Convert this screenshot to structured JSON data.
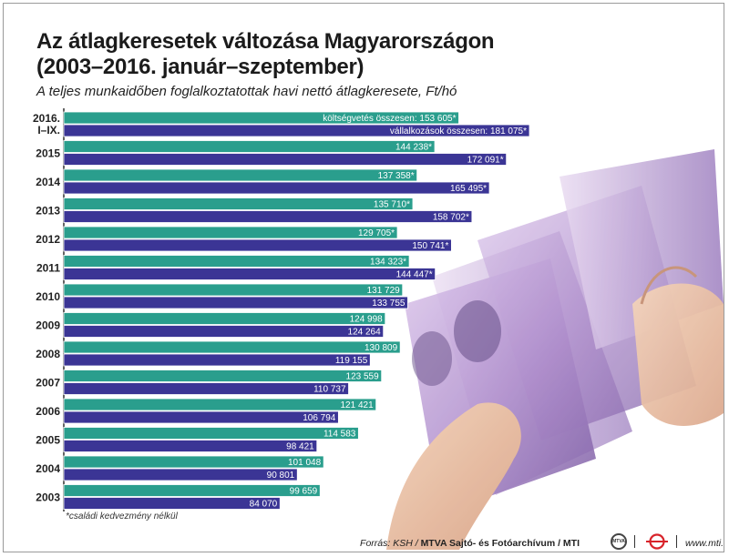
{
  "title_line1": "Az átlagkeresetek változása Magyarországon",
  "title_line2": "(2003–2016. január–szeptember)",
  "subtitle": "A teljes munkaidőben foglalkoztatottak havi nettó átlagkeresete, Ft/hó",
  "footnote": "*családi kedvezmény nélkül",
  "footer": {
    "source_prefix": "Forrás: KSH / ",
    "source_bold": "MTVA Sajtó- és Fotóarchívum / MTI",
    "mtva_logo": "MTVA",
    "website": "www.mti.hu"
  },
  "colors": {
    "teal": "#2a9e8d",
    "purple": "#3b3595",
    "label": "#ffffff"
  },
  "chart_data": {
    "type": "bar",
    "orientation": "horizontal",
    "categories": [
      "2016. I–IX.",
      "2015",
      "2014",
      "2013",
      "2012",
      "2011",
      "2010",
      "2009",
      "2008",
      "2007",
      "2006",
      "2005",
      "2004",
      "2003"
    ],
    "series": [
      {
        "color": "teal",
        "values": [
          153605,
          144238,
          137358,
          135710,
          129705,
          134323,
          131729,
          124998,
          130809,
          123559,
          121421,
          114583,
          101048,
          99659
        ],
        "labels": [
          "költségvetés összesen: 153 605*",
          "144 238*",
          "137 358*",
          "135 710*",
          "129 705*",
          "134 323*",
          "131 729",
          "124 998",
          "130 809",
          "123 559",
          "121 421",
          "114 583",
          "101 048",
          "99 659"
        ]
      },
      {
        "color": "purple",
        "values": [
          181075,
          172091,
          165495,
          158702,
          150741,
          144447,
          133755,
          124264,
          119155,
          110737,
          106794,
          98421,
          90801,
          84070
        ],
        "labels": [
          "vállalkozások összesen: 181 075*",
          "172 091*",
          "165 495*",
          "158 702*",
          "150 741*",
          "144 447*",
          "133 755",
          "124 264",
          "119 155",
          "110 737",
          "106 794",
          "98 421",
          "90 801",
          "84 070"
        ]
      }
    ],
    "category_lines": [
      [
        "2016.",
        "I–IX."
      ]
    ]
  }
}
